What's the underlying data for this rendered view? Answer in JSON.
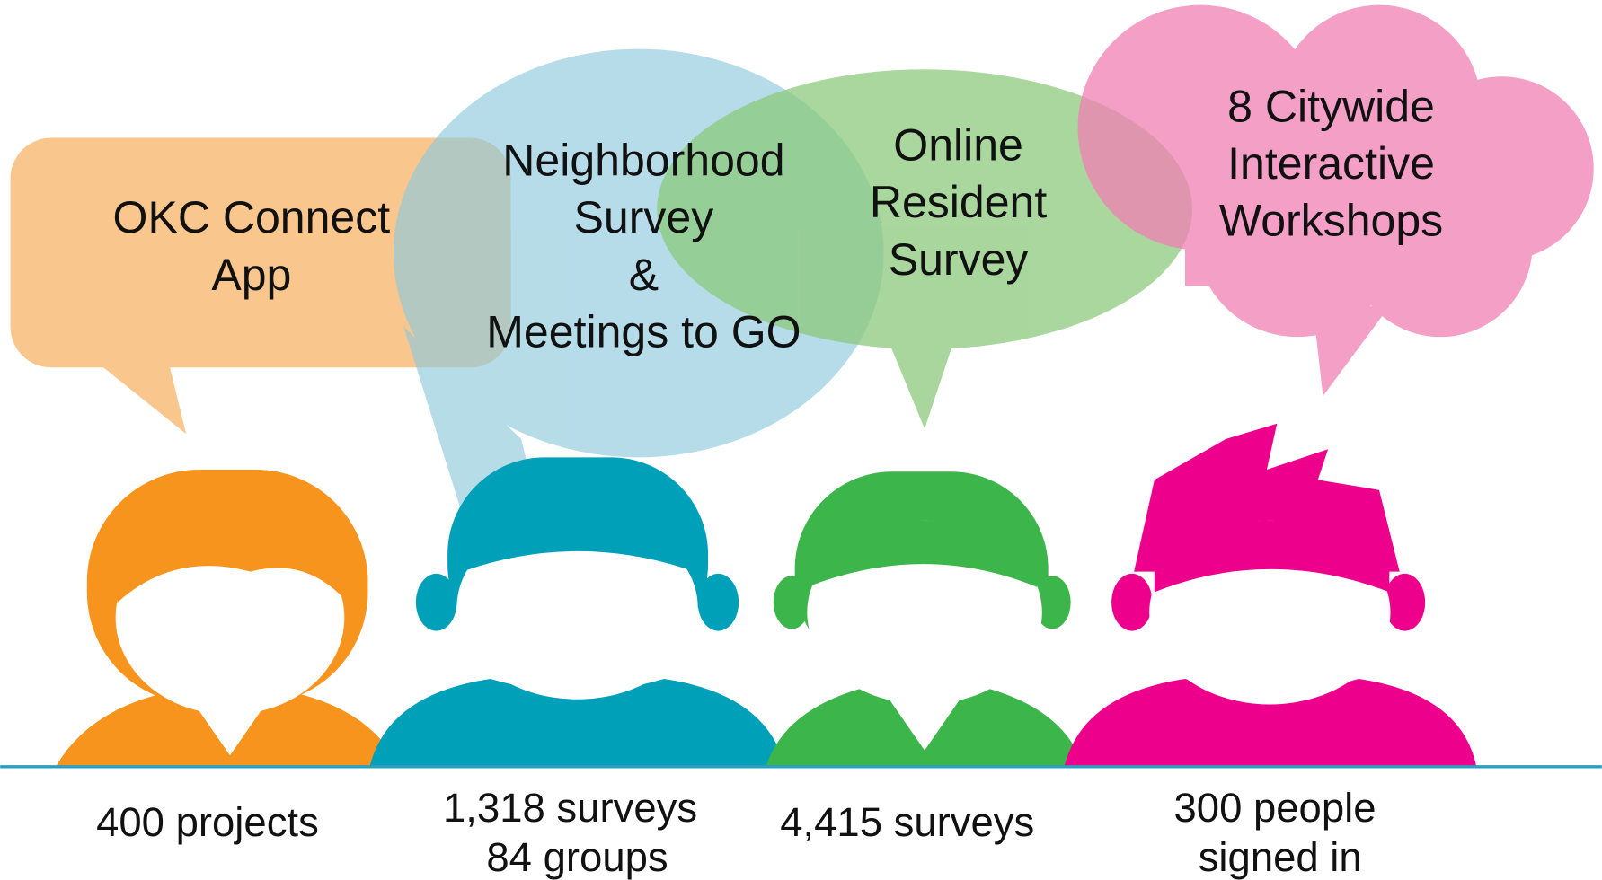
{
  "panels": [
    {
      "bubble": [
        "OKC Connect",
        "App"
      ],
      "stats": [
        "400 projects"
      ]
    },
    {
      "bubble": [
        "Neighborhood",
        "Survey",
        "&",
        "Meetings to GO"
      ],
      "stats": [
        "1,318 surveys",
        "84 groups"
      ]
    },
    {
      "bubble": [
        "Online",
        "Resident",
        "Survey"
      ],
      "stats": [
        "4,415 surveys"
      ]
    },
    {
      "bubble": [
        "8 Citywide",
        "Interactive",
        "Workshops"
      ],
      "stats": [
        "300 people",
        "signed in"
      ]
    }
  ]
}
